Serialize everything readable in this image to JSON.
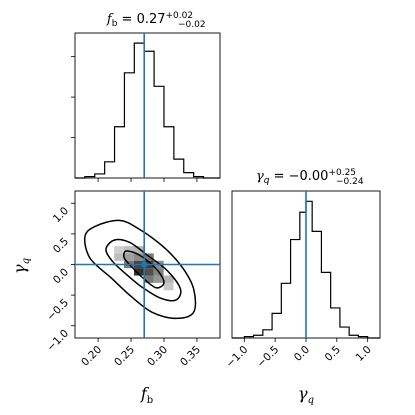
{
  "chart_data": {
    "type": "corner",
    "parameters": [
      "f_b",
      "gamma_q"
    ],
    "truth_color": "#1f77b4",
    "truth": {
      "f_b": 0.27,
      "gamma_q": 0.0
    },
    "titles": {
      "f_b": {
        "lhs": "f",
        "sub": "b",
        "eq": " = 0.27",
        "plus": "+0.02",
        "minus": "−0.02"
      },
      "gamma_q": {
        "lhs": "γ",
        "sub": "q",
        "eq": " = −0.00",
        "plus": "+0.25",
        "minus": "−0.24"
      }
    },
    "axis_labels": {
      "f_b": {
        "main": "f",
        "sub": "b"
      },
      "gamma_q": {
        "main": "γ",
        "sub": "q"
      }
    },
    "ranges": {
      "f_b": [
        0.165,
        0.385
      ],
      "gamma_q": [
        -1.2,
        1.2
      ]
    },
    "ticks": {
      "f_b": [
        "0.20",
        "0.25",
        "0.30",
        "0.35"
      ],
      "gamma_q": [
        "−1.0",
        "−0.5",
        "0.0",
        "0.5",
        "1.0"
      ]
    },
    "tick_values": {
      "f_b": [
        0.2,
        0.25,
        0.3,
        0.35
      ],
      "gamma_q": [
        -1.0,
        -0.5,
        0.0,
        0.5,
        1.0
      ]
    },
    "hist_f_b": {
      "bin_edges": [
        0.165,
        0.18,
        0.195,
        0.21,
        0.225,
        0.24,
        0.255,
        0.27,
        0.285,
        0.3,
        0.315,
        0.33,
        0.345,
        0.36,
        0.375,
        0.385
      ],
      "counts": [
        0,
        1,
        3,
        12,
        38,
        78,
        100,
        94,
        68,
        38,
        14,
        4,
        1,
        0,
        0
      ]
    },
    "hist_gamma_q": {
      "bin_edges": [
        -1.2,
        -1.0,
        -0.85,
        -0.7,
        -0.55,
        -0.4,
        -0.25,
        -0.1,
        0.0,
        0.1,
        0.25,
        0.4,
        0.55,
        0.7,
        0.85,
        1.0,
        1.2
      ],
      "counts": [
        0,
        1,
        2,
        6,
        18,
        40,
        72,
        92,
        100,
        78,
        48,
        22,
        8,
        2,
        1,
        0
      ]
    },
    "contour_levels": [
      {
        "name": "inner",
        "points": [
          [
            0.245,
            0.22
          ],
          [
            0.258,
            0.18
          ],
          [
            0.275,
            0.06
          ],
          [
            0.292,
            -0.12
          ],
          [
            0.3,
            -0.3
          ],
          [
            0.288,
            -0.38
          ],
          [
            0.268,
            -0.22
          ],
          [
            0.252,
            -0.05
          ],
          [
            0.24,
            0.1
          ],
          [
            0.24,
            0.2
          ]
        ]
      },
      {
        "name": "middle",
        "points": [
          [
            0.225,
            0.4
          ],
          [
            0.248,
            0.36
          ],
          [
            0.275,
            0.15
          ],
          [
            0.305,
            -0.1
          ],
          [
            0.325,
            -0.4
          ],
          [
            0.318,
            -0.58
          ],
          [
            0.295,
            -0.55
          ],
          [
            0.268,
            -0.38
          ],
          [
            0.245,
            -0.18
          ],
          [
            0.222,
            0.05
          ],
          [
            0.212,
            0.25
          ]
        ]
      },
      {
        "name": "outer",
        "points": [
          [
            0.195,
            0.62
          ],
          [
            0.232,
            0.72
          ],
          [
            0.262,
            0.58
          ],
          [
            0.3,
            0.28
          ],
          [
            0.328,
            -0.05
          ],
          [
            0.345,
            -0.4
          ],
          [
            0.345,
            -0.78
          ],
          [
            0.318,
            -0.88
          ],
          [
            0.282,
            -0.78
          ],
          [
            0.25,
            -0.52
          ],
          [
            0.22,
            -0.22
          ],
          [
            0.188,
            0.1
          ],
          [
            0.18,
            0.45
          ]
        ]
      }
    ],
    "density_cells": [
      {
        "x": 0.262,
        "y": 0.12,
        "v": 0.45
      },
      {
        "x": 0.277,
        "y": 0.12,
        "v": 0.55
      },
      {
        "x": 0.262,
        "y": 0.0,
        "v": 0.8
      },
      {
        "x": 0.277,
        "y": 0.0,
        "v": 0.85
      },
      {
        "x": 0.262,
        "y": -0.12,
        "v": 0.9
      },
      {
        "x": 0.277,
        "y": -0.12,
        "v": 0.75
      },
      {
        "x": 0.247,
        "y": 0.12,
        "v": 0.35
      },
      {
        "x": 0.247,
        "y": 0.0,
        "v": 0.55
      },
      {
        "x": 0.292,
        "y": -0.12,
        "v": 0.5
      },
      {
        "x": 0.292,
        "y": -0.24,
        "v": 0.4
      },
      {
        "x": 0.277,
        "y": -0.24,
        "v": 0.55
      },
      {
        "x": 0.262,
        "y": 0.24,
        "v": 0.25
      },
      {
        "x": 0.247,
        "y": 0.24,
        "v": 0.2
      },
      {
        "x": 0.232,
        "y": 0.12,
        "v": 0.2
      },
      {
        "x": 0.307,
        "y": -0.24,
        "v": 0.25
      },
      {
        "x": 0.292,
        "y": 0.0,
        "v": 0.45
      },
      {
        "x": 0.232,
        "y": 0.24,
        "v": 0.12
      },
      {
        "x": 0.307,
        "y": -0.36,
        "v": 0.15
      }
    ]
  }
}
